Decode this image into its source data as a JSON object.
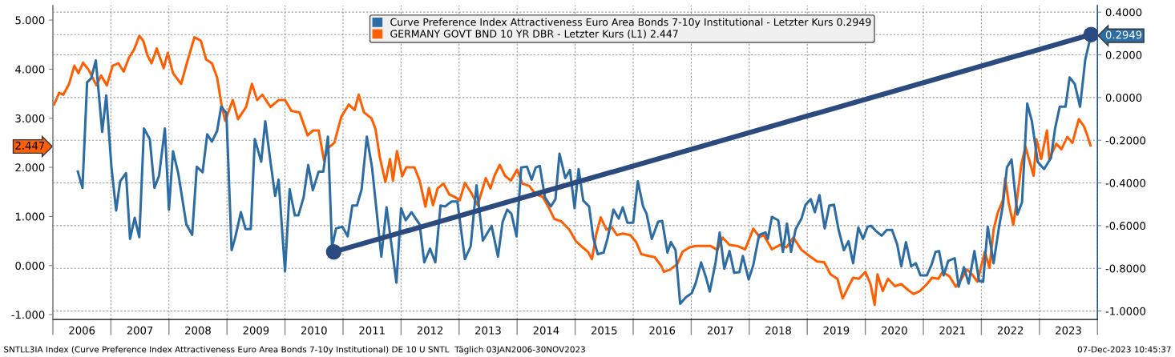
{
  "chart_data": {
    "type": "line",
    "xlim": [
      2006,
      2024
    ],
    "xticks": [
      {
        "value": 2006,
        "label": null
      },
      {
        "value": 2006.5,
        "label": "2006"
      },
      {
        "value": 2007,
        "label": null
      },
      {
        "value": 2007.5,
        "label": "2007"
      },
      {
        "value": 2008,
        "label": null
      },
      {
        "value": 2008.5,
        "label": "2008"
      },
      {
        "value": 2009,
        "label": null
      },
      {
        "value": 2009.5,
        "label": "2009"
      },
      {
        "value": 2010,
        "label": null
      },
      {
        "value": 2010.5,
        "label": "2010"
      },
      {
        "value": 2011,
        "label": null
      },
      {
        "value": 2011.5,
        "label": "2011"
      },
      {
        "value": 2012,
        "label": null
      },
      {
        "value": 2012.5,
        "label": "2012"
      },
      {
        "value": 2013,
        "label": null
      },
      {
        "value": 2013.5,
        "label": "2013"
      },
      {
        "value": 2014,
        "label": null
      },
      {
        "value": 2014.5,
        "label": "2014"
      },
      {
        "value": 2015,
        "label": null
      },
      {
        "value": 2015.5,
        "label": "2015"
      },
      {
        "value": 2016,
        "label": null
      },
      {
        "value": 2016.5,
        "label": "2016"
      },
      {
        "value": 2017,
        "label": null
      },
      {
        "value": 2017.5,
        "label": "2017"
      },
      {
        "value": 2018,
        "label": null
      },
      {
        "value": 2018.5,
        "label": "2018"
      },
      {
        "value": 2019,
        "label": null
      },
      {
        "value": 2019.5,
        "label": "2019"
      },
      {
        "value": 2020,
        "label": null
      },
      {
        "value": 2020.5,
        "label": "2020"
      },
      {
        "value": 2021,
        "label": null
      },
      {
        "value": 2021.5,
        "label": "2021"
      },
      {
        "value": 2022,
        "label": null
      },
      {
        "value": 2022.5,
        "label": "2022"
      },
      {
        "value": 2023,
        "label": null
      },
      {
        "value": 2023.5,
        "label": "2023"
      },
      {
        "value": 2024,
        "label": null
      }
    ],
    "ylim": [
      -1.1,
      5.3
    ],
    "yticks": [
      {
        "value": -1,
        "label": "-1.000"
      },
      {
        "value": 0,
        "label": "0.000"
      },
      {
        "value": 1,
        "label": "1.000"
      },
      {
        "value": 2,
        "label": "2.000"
      },
      {
        "value": 2.447,
        "label": "2.447"
      },
      {
        "value": 3,
        "label": "3.000"
      },
      {
        "value": 4,
        "label": "4.000"
      },
      {
        "value": 5,
        "label": "5.000"
      }
    ],
    "y2lim": [
      -1.0397,
      0.4318
    ],
    "y2ticks": [
      {
        "value": -1,
        "label": "-1.0000"
      },
      {
        "value": -0.8,
        "label": "-0.8000"
      },
      {
        "value": -0.6,
        "label": "-0.6000"
      },
      {
        "value": -0.4,
        "label": "-0.4000"
      },
      {
        "value": -0.2,
        "label": "-0.2000"
      },
      {
        "value": 0,
        "label": "0.0000"
      },
      {
        "value": 0.2,
        "label": "0.2000"
      },
      {
        "value": 0.2949,
        "label": "0.2949"
      },
      {
        "value": 0.4,
        "label": "0.4000"
      }
    ],
    "grid": true,
    "legend": "top",
    "series": [
      {
        "name": "Curve Preference Index Attractiveness Euro Area Bonds 7-10y Institutional - Letzter Kurs 0.2949",
        "color": "#2e6da4",
        "axis": "y2",
        "x": [
          2006.43,
          2006.51,
          2006.59,
          2006.66,
          2006.74,
          2006.85,
          2006.92,
          2007.01,
          2007.09,
          2007.16,
          2007.26,
          2007.33,
          2007.41,
          2007.49,
          2007.57,
          2007.67,
          2007.75,
          2007.83,
          2007.93,
          2008.0,
          2008.07,
          2008.16,
          2008.3,
          2008.4,
          2008.48,
          2008.58,
          2008.66,
          2008.74,
          2008.83,
          2008.9,
          2008.99,
          2009.08,
          2009.14,
          2009.24,
          2009.32,
          2009.41,
          2009.48,
          2009.59,
          2009.66,
          2009.75,
          2009.83,
          2009.89,
          2010.0,
          2010.08,
          2010.17,
          2010.23,
          2010.32,
          2010.4,
          2010.48,
          2010.58,
          2010.66,
          2010.74,
          2010.81,
          2010.88,
          2010.99,
          2011.08,
          2011.16,
          2011.24,
          2011.32,
          2011.41,
          2011.5,
          2011.66,
          2011.75,
          2011.92,
          2012.0,
          2012.08,
          2012.18,
          2012.32,
          2012.4,
          2012.5,
          2012.59,
          2012.68,
          2012.76,
          2012.87,
          2012.97,
          2013.1,
          2013.2,
          2013.3,
          2013.41,
          2013.56,
          2013.67,
          2013.75,
          2013.83,
          2013.9,
          2013.99,
          2014.07,
          2014.17,
          2014.25,
          2014.32,
          2014.39,
          2014.48,
          2014.58,
          2014.66,
          2014.73,
          2014.83,
          2014.91,
          2014.99,
          2015.06,
          2015.14,
          2015.24,
          2015.31,
          2015.39,
          2015.49,
          2015.56,
          2015.66,
          2015.75,
          2015.82,
          2015.9,
          2016.0,
          2016.08,
          2016.17,
          2016.23,
          2016.32,
          2016.43,
          2016.5,
          2016.59,
          2016.65,
          2016.73,
          2016.81,
          2016.91,
          2017.01,
          2017.08,
          2017.17,
          2017.26,
          2017.32,
          2017.42,
          2017.49,
          2017.57,
          2017.66,
          2017.74,
          2017.83,
          2017.89,
          2017.99,
          2018.07,
          2018.17,
          2018.28,
          2018.32,
          2018.39,
          2018.5,
          2018.58,
          2018.65,
          2018.72,
          2018.8,
          2018.9,
          2018.97,
          2019.06,
          2019.13,
          2019.21,
          2019.3,
          2019.38,
          2019.46,
          2019.54,
          2019.63,
          2019.71,
          2019.79,
          2019.88,
          2019.96,
          2020.04,
          2020.1,
          2020.18,
          2020.28,
          2020.37,
          2020.46,
          2020.55,
          2020.62,
          2020.7,
          2020.79,
          2020.87,
          2020.95,
          2021.06,
          2021.14,
          2021.21,
          2021.27,
          2021.35,
          2021.43,
          2021.54,
          2021.61,
          2021.7,
          2021.78,
          2021.88,
          2021.96,
          2022.03,
          2022.11,
          2022.21,
          2022.3,
          2022.37,
          2022.44,
          2022.52,
          2022.62,
          2022.7,
          2022.79,
          2022.87,
          2022.97,
          2023.08,
          2023.2,
          2023.27,
          2023.35,
          2023.45,
          2023.52,
          2023.61,
          2023.7,
          2023.79,
          2023.89
        ],
        "values": [
          -0.347,
          -0.423,
          0.071,
          0.09,
          0.174,
          -0.161,
          0.01,
          -0.328,
          -0.529,
          -0.392,
          -0.354,
          -0.662,
          -0.563,
          -0.654,
          -0.145,
          -0.195,
          -0.423,
          -0.366,
          -0.145,
          -0.525,
          -0.252,
          -0.354,
          -0.594,
          -0.643,
          -0.324,
          -0.35,
          -0.172,
          -0.206,
          -0.157,
          -0.043,
          -0.073,
          -0.715,
          -0.658,
          -0.537,
          -0.616,
          -0.616,
          -0.195,
          -0.301,
          -0.111,
          -0.301,
          -0.461,
          -0.385,
          -0.814,
          -0.43,
          -0.552,
          -0.552,
          -0.468,
          -0.316,
          -0.434,
          -0.347,
          -0.347,
          -0.183,
          -0.7,
          -0.613,
          -0.605,
          -0.65,
          -0.506,
          -0.506,
          -0.43,
          -0.183,
          -0.328,
          -0.745,
          -0.514,
          -0.867,
          -0.518,
          -0.575,
          -0.537,
          -0.594,
          -0.772,
          -0.708,
          -0.772,
          -0.506,
          -0.51,
          -0.487,
          -0.487,
          -0.757,
          -0.696,
          -0.411,
          -0.67,
          -0.601,
          -0.745,
          -0.582,
          -0.525,
          -0.544,
          -0.65,
          -0.328,
          -0.324,
          -0.385,
          -0.328,
          -0.32,
          -0.468,
          -0.51,
          -0.476,
          -0.263,
          -0.377,
          -0.339,
          -0.518,
          -0.335,
          -0.483,
          -0.51,
          -0.654,
          -0.734,
          -0.726,
          -0.658,
          -0.525,
          -0.567,
          -0.514,
          -0.586,
          -0.586,
          -0.392,
          -0.51,
          -0.544,
          -0.662,
          -0.582,
          -0.578,
          -0.726,
          -0.677,
          -0.715,
          -0.966,
          -0.935,
          -0.916,
          -0.867,
          -0.772,
          -0.848,
          -0.909,
          -0.772,
          -0.632,
          -0.802,
          -0.719,
          -0.821,
          -0.818,
          -0.742,
          -0.852,
          -0.784,
          -0.643,
          -0.632,
          -0.662,
          -0.559,
          -0.575,
          -0.723,
          -0.59,
          -0.723,
          -0.616,
          -0.567,
          -0.502,
          -0.476,
          -0.537,
          -0.457,
          -0.613,
          -0.506,
          -0.502,
          -0.62,
          -0.715,
          -0.673,
          -0.776,
          -0.609,
          -0.662,
          -0.605,
          -0.601,
          -0.624,
          -0.647,
          -0.62,
          -0.62,
          -0.689,
          -0.791,
          -0.677,
          -0.791,
          -0.776,
          -0.833,
          -0.833,
          -0.784,
          -0.723,
          -0.719,
          -0.833,
          -0.765,
          -0.753,
          -0.886,
          -0.795,
          -0.871,
          -0.719,
          -0.859,
          -0.863,
          -0.605,
          -0.776,
          -0.613,
          -0.506,
          -0.328,
          -0.29,
          -0.548,
          -0.491,
          -0.028,
          -0.111,
          -0.301,
          -0.335,
          -0.282,
          -0.145,
          -0.043,
          -0.043,
          0.094,
          0.063,
          -0.043,
          0.177,
          0.2949
        ]
      },
      {
        "name": "GERMANY GOVT BND 10 YR DBR - Letzter Kurs (L1) 2.447",
        "color": "#ff5f00",
        "x": [
          2006.02,
          2006.11,
          2006.18,
          2006.28,
          2006.37,
          2006.44,
          2006.52,
          2006.62,
          2006.75,
          2006.83,
          2006.93,
          2007.03,
          2007.13,
          2007.22,
          2007.31,
          2007.4,
          2007.49,
          2007.56,
          2007.63,
          2007.7,
          2007.79,
          2007.91,
          2007.98,
          2008.07,
          2008.21,
          2008.32,
          2008.44,
          2008.55,
          2008.64,
          2008.74,
          2008.83,
          2008.91,
          2008.97,
          2009.1,
          2009.19,
          2009.33,
          2009.43,
          2009.52,
          2009.61,
          2009.75,
          2009.89,
          2010.0,
          2010.11,
          2010.25,
          2010.39,
          2010.48,
          2010.58,
          2010.67,
          2010.75,
          2010.85,
          2010.97,
          2011.1,
          2011.2,
          2011.27,
          2011.36,
          2011.49,
          2011.56,
          2011.63,
          2011.73,
          2011.81,
          2011.86,
          2011.93,
          2012.02,
          2012.09,
          2012.23,
          2012.32,
          2012.42,
          2012.48,
          2012.55,
          2012.63,
          2012.73,
          2012.83,
          2012.92,
          2013.01,
          2013.1,
          2013.2,
          2013.32,
          2013.46,
          2013.54,
          2013.61,
          2013.7,
          2013.79,
          2013.89,
          2014.0,
          2014.09,
          2014.21,
          2014.32,
          2014.44,
          2014.55,
          2014.64,
          2014.76,
          2014.9,
          2015.01,
          2015.13,
          2015.22,
          2015.29,
          2015.36,
          2015.44,
          2015.54,
          2015.63,
          2015.72,
          2015.82,
          2015.95,
          2016.05,
          2016.14,
          2016.25,
          2016.37,
          2016.48,
          2016.53,
          2016.64,
          2016.76,
          2016.85,
          2016.97,
          2017.08,
          2017.2,
          2017.33,
          2017.45,
          2017.54,
          2017.66,
          2017.79,
          2017.93,
          2018.07,
          2018.18,
          2018.25,
          2018.39,
          2018.53,
          2018.64,
          2018.76,
          2018.9,
          2019.03,
          2019.17,
          2019.29,
          2019.4,
          2019.52,
          2019.61,
          2019.71,
          2019.79,
          2019.89,
          2020.0,
          2020.09,
          2020.16,
          2020.21,
          2020.3,
          2020.39,
          2020.51,
          2020.62,
          2020.74,
          2020.83,
          2020.94,
          2021.06,
          2021.15,
          2021.26,
          2021.33,
          2021.45,
          2021.56,
          2021.66,
          2021.75,
          2021.84,
          2021.93,
          2022.0,
          2022.06,
          2022.14,
          2022.21,
          2022.28,
          2022.37,
          2022.41,
          2022.47,
          2022.55,
          2022.62,
          2022.69,
          2022.76,
          2022.83,
          2022.9,
          2022.95,
          2023.03,
          2023.13,
          2023.17,
          2023.29,
          2023.38,
          2023.48,
          2023.57,
          2023.62,
          2023.68,
          2023.77,
          2023.82,
          2023.88
        ],
        "values": [
          3.28,
          3.52,
          3.48,
          3.7,
          4.07,
          3.92,
          4.13,
          3.98,
          3.67,
          3.87,
          3.67,
          4.07,
          4.12,
          3.95,
          4.23,
          4.4,
          4.68,
          4.57,
          4.28,
          4.12,
          4.42,
          4.02,
          4.33,
          3.92,
          3.7,
          4.17,
          4.65,
          4.58,
          4.2,
          4.12,
          3.83,
          3.25,
          2.95,
          3.37,
          2.98,
          3.23,
          3.7,
          3.37,
          3.48,
          3.23,
          3.37,
          3.37,
          3.15,
          3.12,
          2.65,
          2.75,
          2.75,
          2.15,
          2.4,
          2.5,
          3.03,
          3.28,
          3.17,
          3.48,
          3.12,
          3.0,
          2.78,
          2.23,
          1.7,
          2.17,
          1.73,
          2.33,
          1.82,
          2.0,
          2.0,
          1.73,
          1.2,
          1.58,
          1.23,
          1.57,
          1.67,
          1.45,
          1.4,
          1.33,
          1.68,
          1.5,
          1.23,
          1.78,
          1.57,
          1.83,
          2.05,
          1.83,
          1.73,
          1.95,
          1.67,
          1.62,
          1.45,
          1.4,
          1.17,
          0.95,
          0.9,
          0.73,
          0.5,
          0.37,
          0.28,
          0.13,
          0.62,
          0.98,
          0.73,
          0.78,
          0.62,
          0.65,
          0.62,
          0.48,
          0.23,
          0.2,
          0.17,
          0.0,
          -0.13,
          -0.08,
          0.03,
          0.28,
          0.37,
          0.4,
          0.4,
          0.4,
          0.32,
          0.57,
          0.42,
          0.4,
          0.33,
          0.75,
          0.58,
          0.62,
          0.33,
          0.42,
          0.37,
          0.57,
          0.32,
          0.2,
          0.08,
          0.07,
          -0.18,
          -0.27,
          -0.67,
          -0.43,
          -0.25,
          -0.27,
          -0.13,
          -0.38,
          -0.8,
          -0.18,
          -0.52,
          -0.27,
          -0.42,
          -0.38,
          -0.5,
          -0.58,
          -0.52,
          -0.38,
          -0.25,
          -0.27,
          -0.13,
          -0.22,
          -0.43,
          -0.27,
          -0.08,
          -0.18,
          -0.33,
          0.0,
          0.28,
          -0.05,
          0.73,
          1.07,
          1.33,
          1.78,
          1.28,
          0.83,
          1.4,
          2.07,
          2.42,
          2.12,
          1.83,
          2.57,
          2.17,
          2.75,
          2.17,
          2.48,
          2.37,
          2.62,
          2.5,
          2.73,
          2.98,
          2.83,
          2.67,
          2.447
        ]
      },
      {
        "type": "line",
        "color": "#2b4a80",
        "axis": "y2",
        "marker": "circle",
        "x": [
          2010.84,
          2023.89
        ],
        "values": [
          -0.723,
          0.2949
        ]
      }
    ],
    "annotations": [
      "SNTLL3IA Index (Curve Preference Index Attractiveness Euro Area Bonds 7-10y Institutional) DE 10 U SNTL  Täglich 03JAN2006-30NOV2023",
      "07-Dec-2023 10:45:37"
    ]
  }
}
